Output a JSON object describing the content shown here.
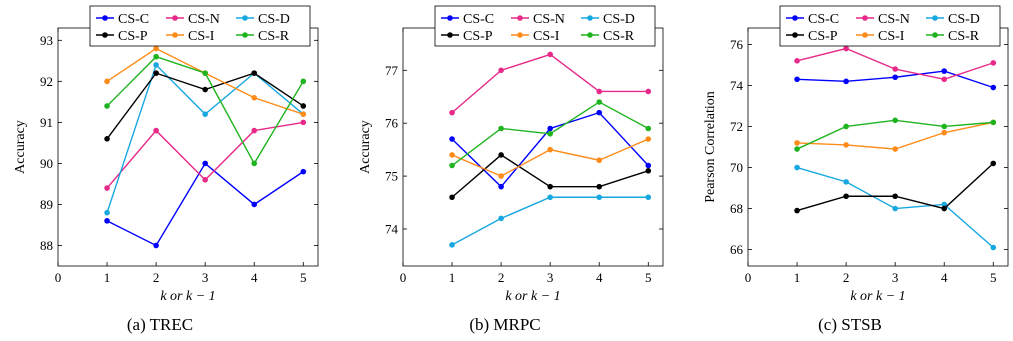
{
  "chart_data": [
    {
      "type": "line",
      "caption": "(a)  TREC",
      "xlabel": "k or k − 1",
      "ylabel": "Accuracy",
      "xlim": [
        0,
        5.3
      ],
      "ylim": [
        87.5,
        93.3
      ],
      "xticks": [
        0,
        1,
        2,
        3,
        4,
        5
      ],
      "yticks": [
        88,
        89,
        90,
        91,
        92,
        93
      ],
      "x": [
        1,
        2,
        3,
        4,
        5
      ],
      "legend": "top",
      "series": [
        {
          "name": "CS-C",
          "color": "#0000ff",
          "values": [
            88.6,
            88.0,
            90.0,
            89.0,
            89.8
          ]
        },
        {
          "name": "CS-N",
          "color": "#e7298a",
          "values": [
            89.4,
            90.8,
            89.6,
            90.8,
            91.0
          ]
        },
        {
          "name": "CS-D",
          "color": "#17a8e0",
          "values": [
            88.8,
            92.4,
            91.2,
            92.2,
            91.2
          ]
        },
        {
          "name": "CS-P",
          "color": "#000000",
          "values": [
            90.6,
            92.2,
            91.8,
            92.2,
            91.4
          ]
        },
        {
          "name": "CS-I",
          "color": "#ff8c1a",
          "values": [
            92.0,
            92.8,
            92.2,
            91.6,
            91.2
          ]
        },
        {
          "name": "CS-R",
          "color": "#1fb41f",
          "values": [
            91.4,
            92.6,
            92.2,
            90.0,
            92.0
          ]
        }
      ]
    },
    {
      "type": "line",
      "caption": "(b)  MRPC",
      "xlabel": "k or k − 1",
      "ylabel": "Accuracy",
      "xlim": [
        0,
        5.3
      ],
      "ylim": [
        73.3,
        77.8
      ],
      "xticks": [
        0,
        1,
        2,
        3,
        4,
        5
      ],
      "yticks": [
        74,
        75,
        76,
        77
      ],
      "x": [
        1,
        2,
        3,
        4,
        5
      ],
      "legend": "top",
      "series": [
        {
          "name": "CS-C",
          "color": "#0000ff",
          "values": [
            75.7,
            74.8,
            75.9,
            76.2,
            75.2
          ]
        },
        {
          "name": "CS-N",
          "color": "#e7298a",
          "values": [
            76.2,
            77.0,
            77.3,
            76.6,
            76.6
          ]
        },
        {
          "name": "CS-D",
          "color": "#17a8e0",
          "values": [
            73.7,
            74.2,
            74.6,
            74.6,
            74.6
          ]
        },
        {
          "name": "CS-P",
          "color": "#000000",
          "values": [
            74.6,
            75.4,
            74.8,
            74.8,
            75.1
          ]
        },
        {
          "name": "CS-I",
          "color": "#ff8c1a",
          "values": [
            75.4,
            75.0,
            75.5,
            75.3,
            75.7
          ]
        },
        {
          "name": "CS-R",
          "color": "#1fb41f",
          "values": [
            75.2,
            75.9,
            75.8,
            76.4,
            75.9
          ]
        }
      ]
    },
    {
      "type": "line",
      "caption": "(c)  STSB",
      "xlabel": "k or k − 1",
      "ylabel": "Pearson Correlation",
      "xlim": [
        0,
        5.3
      ],
      "ylim": [
        65.2,
        76.8
      ],
      "xticks": [
        0,
        1,
        2,
        3,
        4,
        5
      ],
      "yticks": [
        66,
        68,
        70,
        72,
        74,
        76
      ],
      "x": [
        1,
        2,
        3,
        4,
        5
      ],
      "legend": "top",
      "series": [
        {
          "name": "CS-C",
          "color": "#0000ff",
          "values": [
            74.3,
            74.2,
            74.4,
            74.7,
            73.9
          ]
        },
        {
          "name": "CS-N",
          "color": "#e7298a",
          "values": [
            75.2,
            75.8,
            74.8,
            74.3,
            75.1
          ]
        },
        {
          "name": "CS-D",
          "color": "#17a8e0",
          "values": [
            70.0,
            69.3,
            68.0,
            68.2,
            66.1
          ]
        },
        {
          "name": "CS-P",
          "color": "#000000",
          "values": [
            67.9,
            68.6,
            68.6,
            68.0,
            70.2
          ]
        },
        {
          "name": "CS-I",
          "color": "#ff8c1a",
          "values": [
            71.2,
            71.1,
            70.9,
            71.7,
            72.2
          ]
        },
        {
          "name": "CS-R",
          "color": "#1fb41f",
          "values": [
            70.9,
            72.0,
            72.3,
            72.0,
            72.2
          ]
        }
      ]
    }
  ]
}
